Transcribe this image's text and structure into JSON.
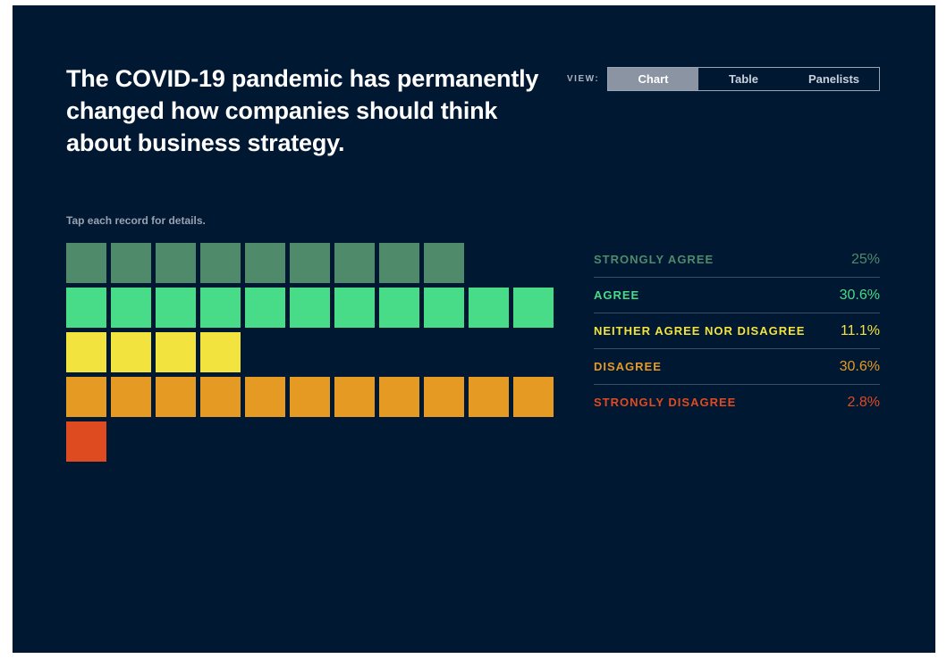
{
  "title": "The COVID-19 pandemic has permanently changed how companies should think about business strategy.",
  "view": {
    "label": "VIEW:",
    "options": [
      "Chart",
      "Table",
      "Panelists"
    ],
    "selected": "Chart"
  },
  "hint": "Tap each record for details.",
  "chart_data": {
    "type": "waffle",
    "title": "The COVID-19 pandemic has permanently changed how companies should think about business strategy.",
    "categories": [
      {
        "label": "STRONGLY AGREE",
        "percent": "25%",
        "count": 9,
        "color": "#4f8a6b"
      },
      {
        "label": "AGREE",
        "percent": "30.6%",
        "count": 11,
        "color": "#48dc88"
      },
      {
        "label": "NEITHER AGREE NOR DISAGREE",
        "percent": "11.1%",
        "count": 4,
        "color": "#f3e33f"
      },
      {
        "label": "DISAGREE",
        "percent": "30.6%",
        "count": 11,
        "color": "#e59a24"
      },
      {
        "label": "STRONGLY DISAGREE",
        "percent": "2.8%",
        "count": 1,
        "color": "#de4b21"
      }
    ]
  }
}
